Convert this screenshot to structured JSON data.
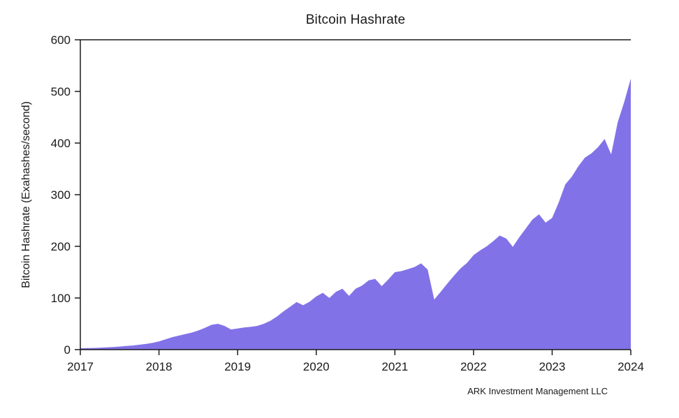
{
  "chart_data": {
    "type": "area",
    "title": "Bitcoin Hashrate",
    "ylabel": "Bitcoin Hashrate (Exahashes/second)",
    "xlabel": "",
    "source": "ARK Investment Management LLC",
    "fill_color": "#8272e8",
    "axis_color": "#1a1a1a",
    "background_color": "#ffffff",
    "grid": false,
    "legend": false,
    "xlim": [
      2017,
      2024
    ],
    "ylim": [
      0,
      600
    ],
    "x_ticks": [
      2017,
      2018,
      2019,
      2020,
      2021,
      2022,
      2023,
      2024
    ],
    "y_ticks": [
      0,
      100,
      200,
      300,
      400,
      500,
      600
    ],
    "x": [
      2017.0,
      2017.083,
      2017.167,
      2017.25,
      2017.333,
      2017.417,
      2017.5,
      2017.583,
      2017.667,
      2017.75,
      2017.833,
      2017.917,
      2018.0,
      2018.083,
      2018.167,
      2018.25,
      2018.333,
      2018.417,
      2018.5,
      2018.583,
      2018.667,
      2018.75,
      2018.833,
      2018.917,
      2019.0,
      2019.083,
      2019.167,
      2019.25,
      2019.333,
      2019.417,
      2019.5,
      2019.583,
      2019.667,
      2019.75,
      2019.833,
      2019.917,
      2020.0,
      2020.083,
      2020.167,
      2020.25,
      2020.333,
      2020.417,
      2020.5,
      2020.583,
      2020.667,
      2020.75,
      2020.833,
      2020.917,
      2021.0,
      2021.083,
      2021.167,
      2021.25,
      2021.333,
      2021.417,
      2021.5,
      2021.583,
      2021.667,
      2021.75,
      2021.833,
      2021.917,
      2022.0,
      2022.083,
      2022.167,
      2022.25,
      2022.333,
      2022.417,
      2022.5,
      2022.583,
      2022.667,
      2022.75,
      2022.833,
      2022.917,
      2023.0,
      2023.083,
      2023.167,
      2023.25,
      2023.333,
      2023.417,
      2023.5,
      2023.583,
      2023.667,
      2023.75,
      2023.833,
      2023.917,
      2024.0
    ],
    "values": [
      2.5,
      3,
      3.3,
      3.8,
      4.5,
      5,
      6,
      7,
      8,
      9.5,
      11,
      13,
      16,
      20,
      24,
      27,
      30,
      33,
      37,
      42,
      48,
      50,
      46,
      39,
      41,
      43,
      44,
      46,
      50,
      56,
      64,
      74,
      83,
      92,
      86,
      93,
      103,
      110,
      100,
      112,
      118,
      104,
      118,
      124,
      134,
      137,
      123,
      136,
      150,
      152,
      156,
      160,
      167,
      155,
      97,
      112,
      128,
      143,
      157,
      168,
      183,
      192,
      200,
      210,
      221,
      215,
      199,
      218,
      235,
      252,
      262,
      246,
      255,
      285,
      320,
      335,
      355,
      372,
      380,
      392,
      408,
      378,
      440,
      480,
      525
    ]
  }
}
